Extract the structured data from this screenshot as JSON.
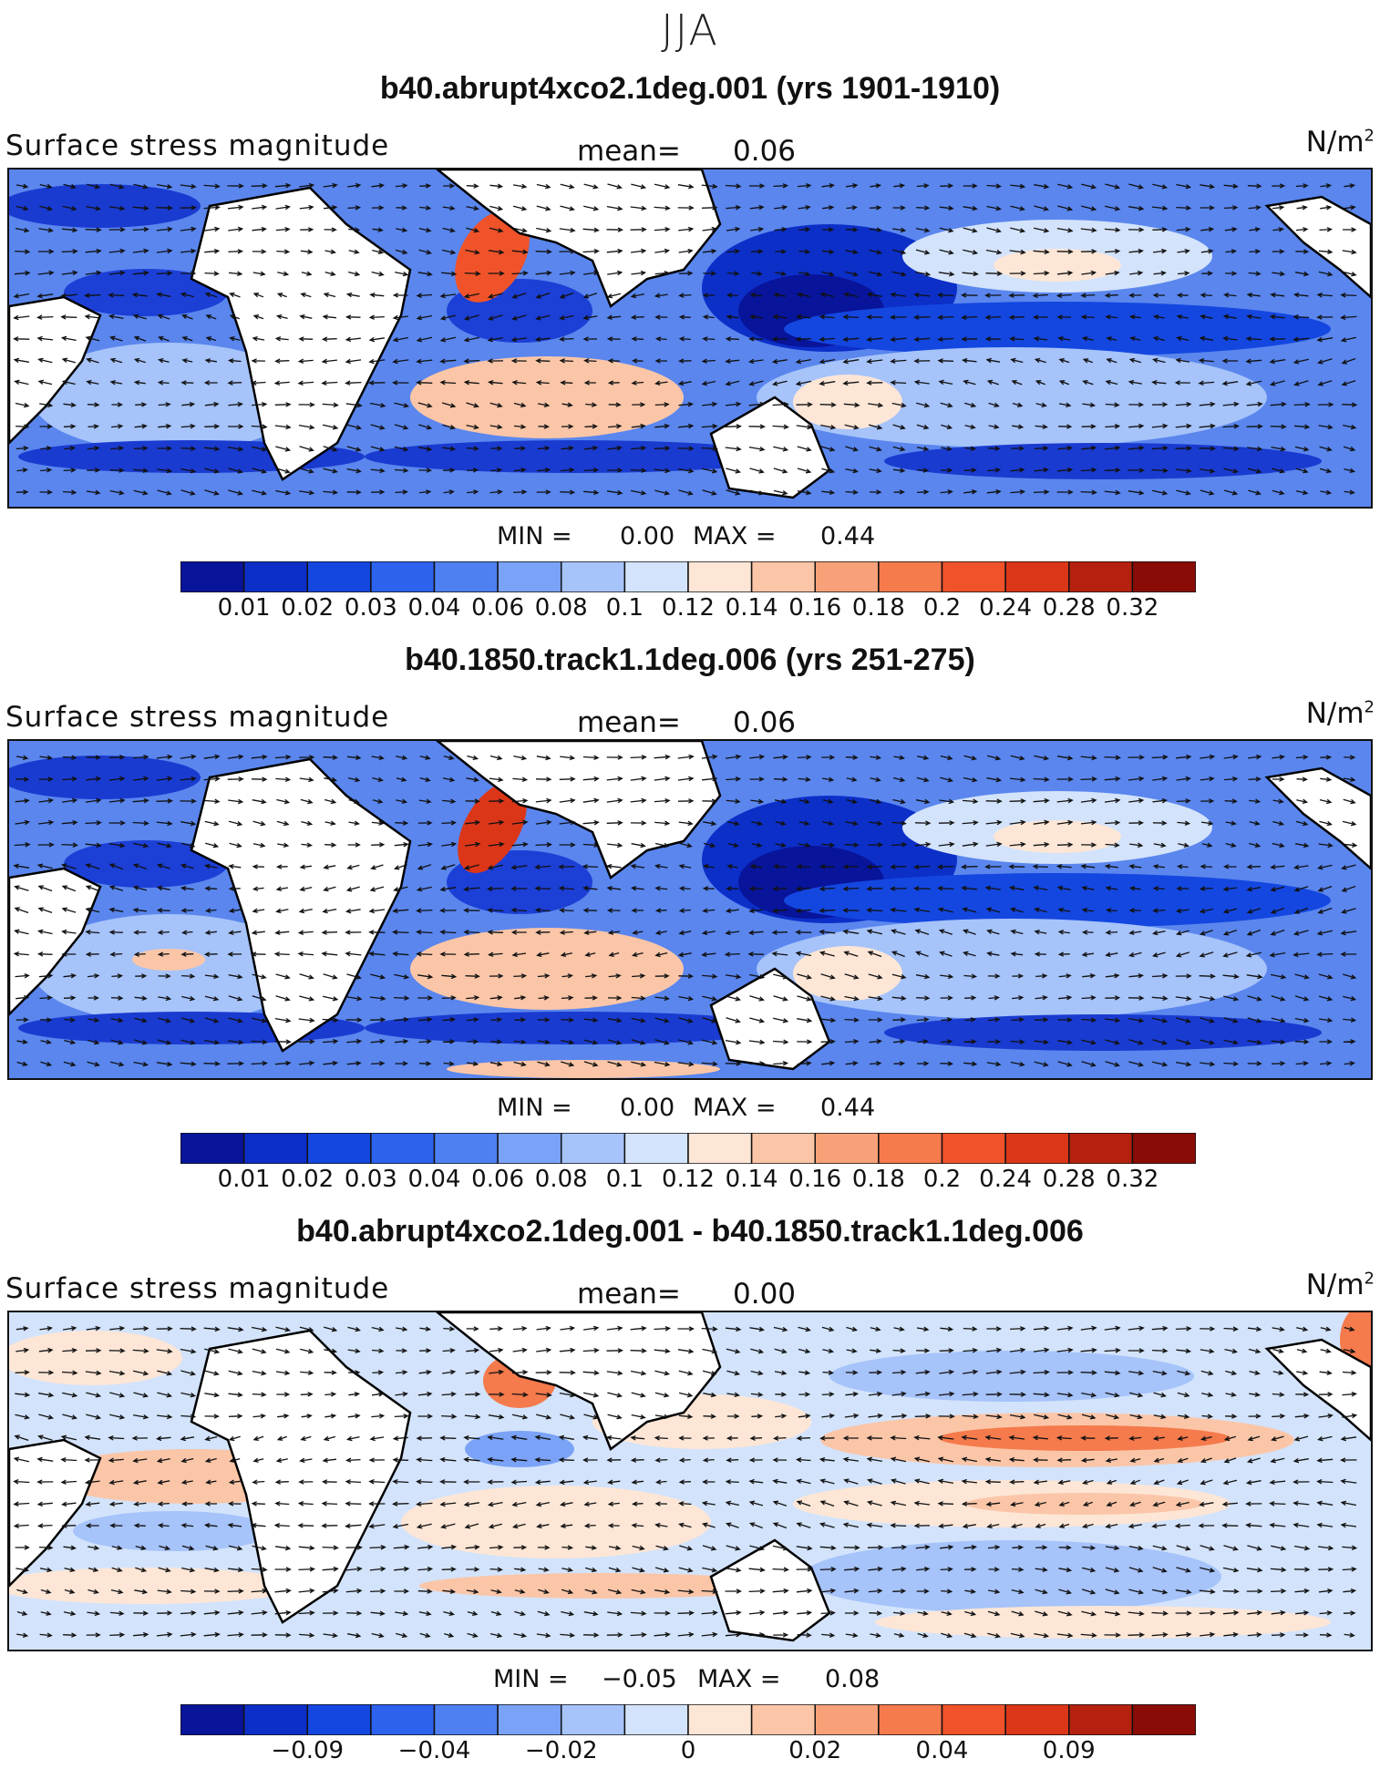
{
  "figure": {
    "season_title": "JJA"
  },
  "panels": [
    {
      "title": "b40.abrupt4xco2.1deg.001 (yrs 1901-1910)",
      "variable": "Surface stress magnitude",
      "mean_label": "mean=",
      "mean_value": "0.06",
      "unit_base": "N/m",
      "unit_exp": "2",
      "min_label": "MIN =",
      "min_value": "0.00",
      "max_label": "MAX =",
      "max_value": "0.44",
      "colorbar": {
        "colors": [
          "#08149a",
          "#0c2fc8",
          "#1447e0",
          "#2d62ee",
          "#4f80f2",
          "#7aa2f6",
          "#a6c3fa",
          "#d3e3fb",
          "#fde6d6",
          "#fbc6a8",
          "#f8a179",
          "#f57a4c",
          "#f0532a",
          "#dc3618",
          "#b6210f",
          "#8a0c07"
        ],
        "tick_labels": [
          "0.01",
          "0.02",
          "0.03",
          "0.04",
          "0.06",
          "0.08",
          "0.1",
          "0.12",
          "0.14",
          "0.16",
          "0.18",
          "0.2",
          "0.24",
          "0.28",
          "0.32"
        ]
      }
    },
    {
      "title": "b40.1850.track1.1deg.006 (yrs 251-275)",
      "variable": "Surface stress magnitude",
      "mean_label": "mean=",
      "mean_value": "0.06",
      "unit_base": "N/m",
      "unit_exp": "2",
      "min_label": "MIN =",
      "min_value": "0.00",
      "max_label": "MAX =",
      "max_value": "0.44",
      "colorbar": {
        "colors": [
          "#08149a",
          "#0c2fc8",
          "#1447e0",
          "#2d62ee",
          "#4f80f2",
          "#7aa2f6",
          "#a6c3fa",
          "#d3e3fb",
          "#fde6d6",
          "#fbc6a8",
          "#f8a179",
          "#f57a4c",
          "#f0532a",
          "#dc3618",
          "#b6210f",
          "#8a0c07"
        ],
        "tick_labels": [
          "0.01",
          "0.02",
          "0.03",
          "0.04",
          "0.06",
          "0.08",
          "0.1",
          "0.12",
          "0.14",
          "0.16",
          "0.18",
          "0.2",
          "0.24",
          "0.28",
          "0.32"
        ]
      }
    },
    {
      "title": "b40.abrupt4xco2.1deg.001 - b40.1850.track1.1deg.006",
      "variable": "Surface stress magnitude",
      "mean_label": "mean=",
      "mean_value": "0.00",
      "unit_base": "N/m",
      "unit_exp": "2",
      "min_label": "MIN =",
      "min_value": "−0.05",
      "max_label": "MAX =",
      "max_value": "0.08",
      "colorbar": {
        "colors": [
          "#08149a",
          "#0c2fc8",
          "#1447e0",
          "#2d62ee",
          "#4f80f2",
          "#7aa2f6",
          "#a6c3fa",
          "#d3e3fb",
          "#fde6d6",
          "#fbc6a8",
          "#f8a179",
          "#f57a4c",
          "#f0532a",
          "#dc3618",
          "#b6210f",
          "#8a0c07"
        ],
        "tick_labels": [
          "−0.09",
          "−0.04",
          "−0.02",
          "0",
          "0.02",
          "0.04",
          "0.09"
        ],
        "tick_boundaries": [
          2,
          4,
          6,
          8,
          10,
          12,
          14
        ]
      }
    }
  ]
}
